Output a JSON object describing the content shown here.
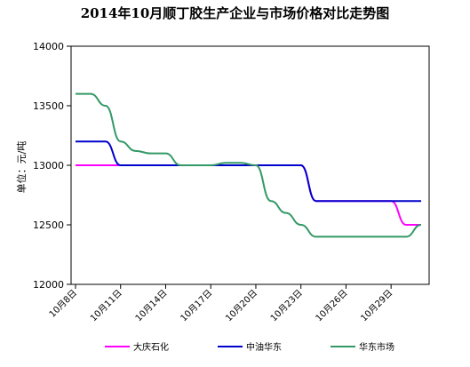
{
  "chart_data": {
    "type": "line",
    "title": "2014年10月顺丁胶生产企业与市场价格对比走势图",
    "ylabel": "单位：元/吨",
    "xlabel": "",
    "ylim": [
      12000,
      14000
    ],
    "yticks": [
      "12000",
      "12500",
      "13000",
      "13500",
      "14000"
    ],
    "ytick_values": [
      12000,
      12500,
      13000,
      13500,
      14000
    ],
    "x": [
      "10月8日",
      "10月9日",
      "10月10日",
      "10月11日",
      "10月12日",
      "10月13日",
      "10月14日",
      "10月15日",
      "10月16日",
      "10月17日",
      "10月18日",
      "10月19日",
      "10月20日",
      "10月21日",
      "10月22日",
      "10月23日",
      "10月24日",
      "10月25日",
      "10月26日",
      "10月27日",
      "10月28日",
      "10月29日",
      "10月30日",
      "10月31日"
    ],
    "xtick_labels": [
      {
        "index": 0,
        "label": "10月8日"
      },
      {
        "index": 3,
        "label": "10月11日"
      },
      {
        "index": 6,
        "label": "10月14日"
      },
      {
        "index": 9,
        "label": "10月17日"
      },
      {
        "index": 12,
        "label": "10月20日"
      },
      {
        "index": 15,
        "label": "10月23日"
      },
      {
        "index": 18,
        "label": "10月26日"
      },
      {
        "index": 21,
        "label": "10月29日"
      }
    ],
    "grid": false,
    "legend": "bottom",
    "series": [
      {
        "name": "大庆石化",
        "color": "#ff00ff",
        "values": [
          13000,
          13000,
          13000,
          13000,
          13000,
          13000,
          13000,
          13000,
          13000,
          13000,
          13000,
          13000,
          13000,
          13000,
          13000,
          13000,
          12700,
          12700,
          12700,
          12700,
          12700,
          12700,
          12500,
          12500
        ]
      },
      {
        "name": "中油华东",
        "color": "#0000cc",
        "values": [
          13200,
          13200,
          13200,
          13000,
          13000,
          13000,
          13000,
          13000,
          13000,
          13000,
          13000,
          13000,
          13000,
          13000,
          13000,
          13000,
          12700,
          12700,
          12700,
          12700,
          12700,
          12700,
          12700,
          12700
        ]
      },
      {
        "name": "华东市场",
        "color": "#339966",
        "values": [
          13600,
          13600,
          13500,
          13200,
          13120,
          13100,
          13100,
          13000,
          13000,
          13000,
          13020,
          13020,
          13000,
          12700,
          12600,
          12500,
          12400,
          12400,
          12400,
          12400,
          12400,
          12400,
          12400,
          12500
        ]
      }
    ]
  }
}
